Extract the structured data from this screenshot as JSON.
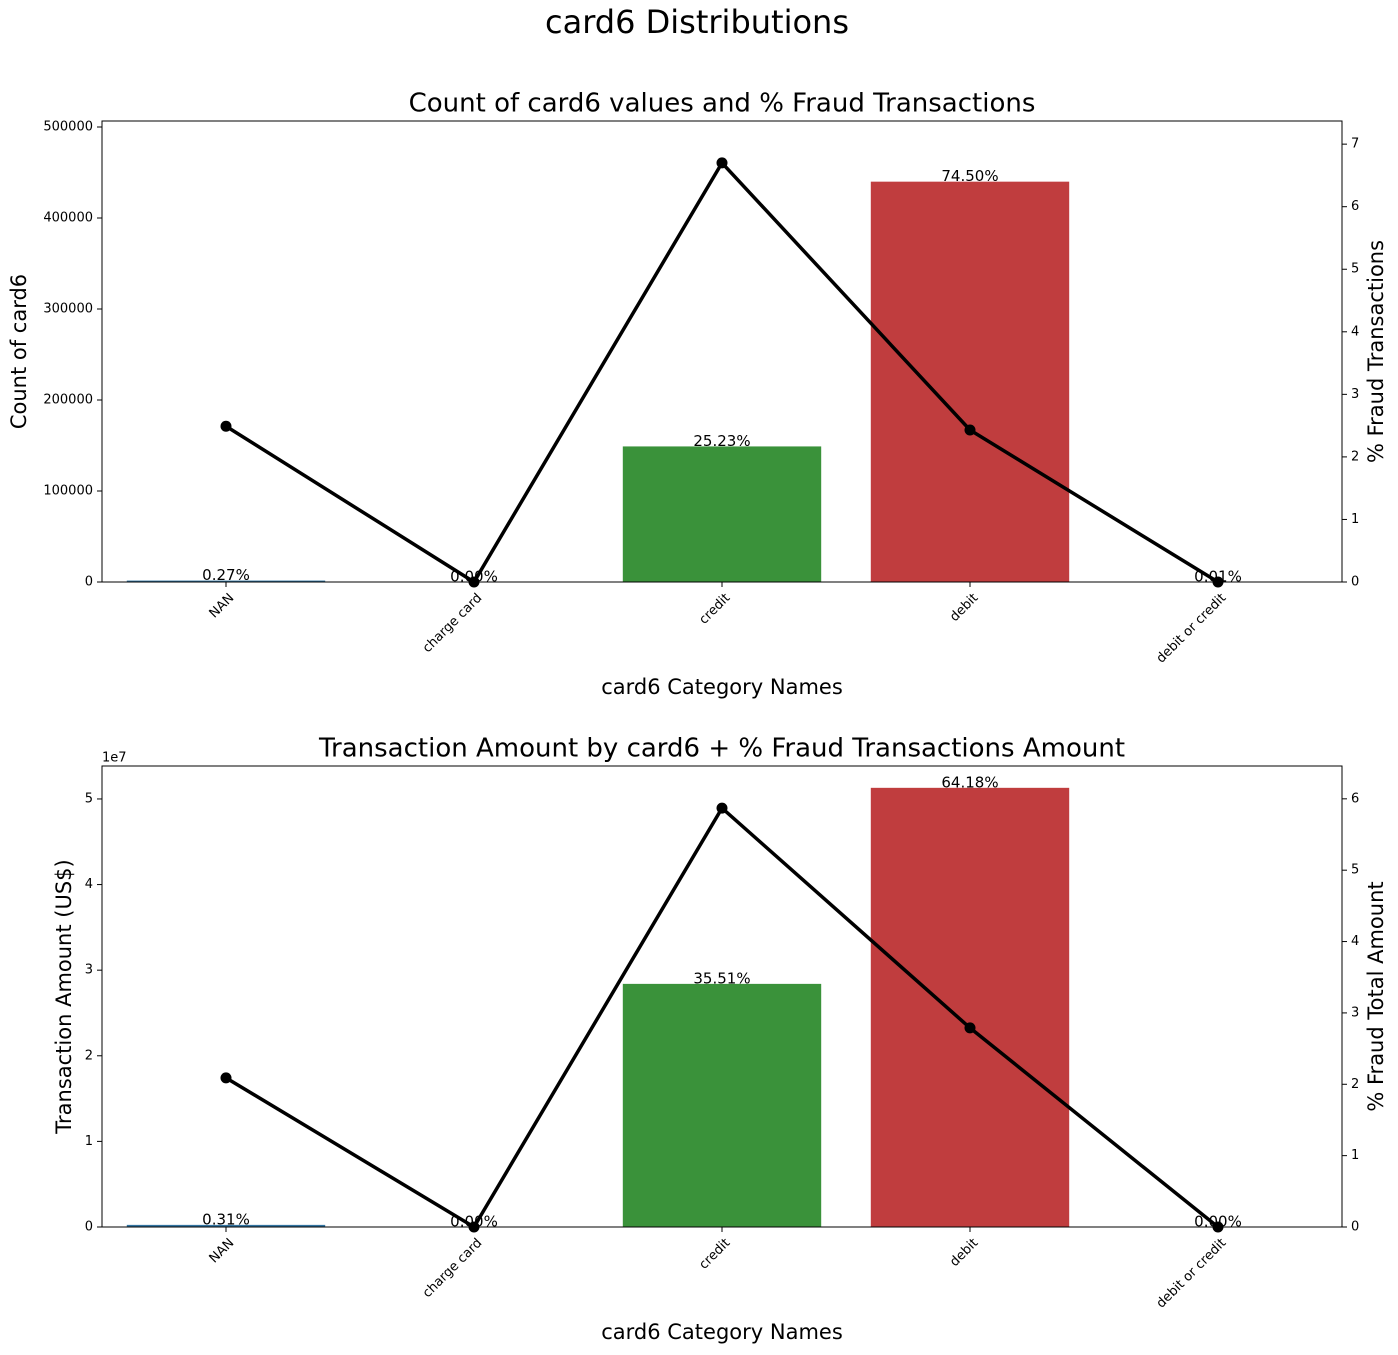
{
  "title": "card6 Distributions",
  "chart_data": [
    {
      "type": "bar",
      "title": "Count of card6 values and % Fraud Transactions",
      "x_label": "card6 Category Names",
      "y_label": "Count of card6",
      "y2_label": "% Fraud Transactions",
      "categories": [
        "NAN",
        "charge card",
        "credit",
        "debit",
        "debit or credit"
      ],
      "bars": {
        "values": [
          1571,
          15,
          148986,
          439938,
          30
        ],
        "colors": [
          "#3274a1",
          "#e1812c",
          "#3a923a",
          "#c03d3e",
          "#9372b2"
        ],
        "share_labels": [
          "0.27%",
          "0.00%",
          "25.23%",
          "74.50%",
          "0.01%"
        ]
      },
      "line": {
        "values": [
          2.49,
          0,
          6.7,
          2.43,
          0
        ],
        "color": "#000000",
        "axis": "y2"
      },
      "ylim": [
        0,
        506600
      ],
      "yticks": [
        0,
        100000,
        200000,
        300000,
        400000,
        500000
      ],
      "y2lim": [
        0,
        7.37
      ],
      "y2ticks": [
        0,
        1,
        2,
        3,
        4,
        5,
        6,
        7
      ]
    },
    {
      "type": "bar",
      "title": "Transaction Amount by card6 + % Fraud Transactions Amount",
      "x_label": "card6 Category Names",
      "y_label": "Transaction Amount (US$)",
      "y2_label": "% Fraud Total Amount",
      "y_offset_label": "1e7",
      "categories": [
        "NAN",
        "charge card",
        "credit",
        "debit",
        "debit or credit"
      ],
      "bars": {
        "values": [
          247700,
          1000,
          28400000,
          51300000,
          3000
        ],
        "colors": [
          "#3274a1",
          "#e1812c",
          "#3a923a",
          "#c03d3e",
          "#9372b2"
        ],
        "share_labels": [
          "0.31%",
          "0.00%",
          "35.51%",
          "64.18%",
          "0.00%"
        ]
      },
      "line": {
        "values": [
          2.09,
          0,
          5.87,
          2.79,
          0
        ],
        "color": "#000000",
        "axis": "y2"
      },
      "ylim": [
        0,
        53850000
      ],
      "yticks": [
        0,
        {
          "value": 10000000,
          "label": "1"
        },
        {
          "value": 20000000,
          "label": "2"
        },
        {
          "value": 30000000,
          "label": "3"
        },
        {
          "value": 40000000,
          "label": "4"
        },
        {
          "value": 50000000,
          "label": "5"
        }
      ],
      "y2lim": [
        0,
        6.46
      ],
      "y2ticks": [
        0,
        1,
        2,
        3,
        4,
        5,
        6
      ]
    }
  ]
}
